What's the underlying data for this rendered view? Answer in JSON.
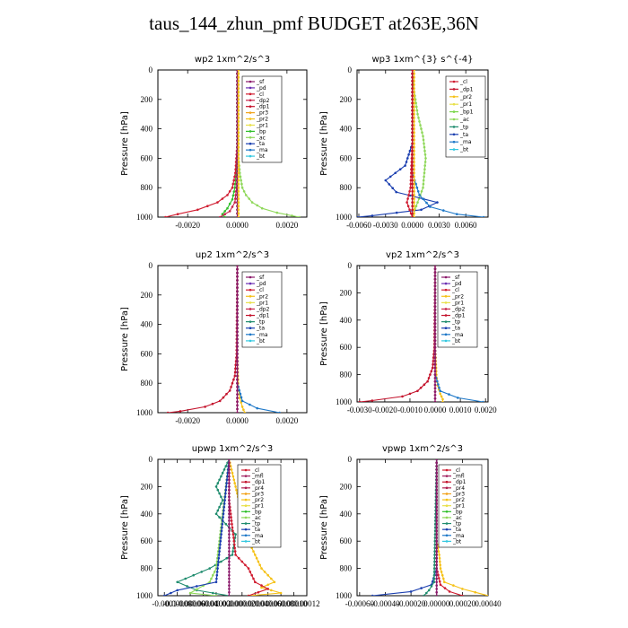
{
  "title": "taus_144_zhun_pmf  BUDGET at263E,36N",
  "colors": {
    "sf": "#8b1a6b",
    "pd": "#6b2fb3",
    "cl": "#d01c30",
    "dp2": "#c8244a",
    "dp1": "#c4132c",
    "pr3": "#f2a31c",
    "pr2": "#f5c116",
    "pr1": "#e8e04a",
    "bp": "#2fbf2a",
    "bp1": "#7ad64a",
    "ac": "#8fd85a",
    "tp": "#1f8c6e",
    "ta": "#1b3fb0",
    "ma": "#1e78c8",
    "bt": "#34c8e0",
    "mfl": "#a01f5f",
    "pr4": "#b02050",
    "dp1b": "#c93050"
  },
  "chart_data": [
    {
      "type": "line",
      "title": "wp2   1xm^2/s^3",
      "ylabel": "Pressure  [hPa]",
      "ylim": [
        1000,
        0
      ],
      "yticks": [
        0,
        200,
        400,
        600,
        800,
        1000
      ],
      "xlim": [
        -0.0032,
        0.0028
      ],
      "xticks": [
        -0.002,
        0.0,
        0.002
      ],
      "xtick_labels": [
        "-0.0020",
        "0.0000",
        "0.0020"
      ],
      "legend": [
        "_sf",
        "_pd",
        "_cl",
        "_dp2",
        "_dp1",
        "_pr3",
        "_pr2",
        "_pr1",
        "_bp",
        "_ac",
        "_ta",
        "_ma",
        "_bt"
      ],
      "series": [
        {
          "key": "ac",
          "p": [
            0,
            400,
            600,
            700,
            800,
            850,
            900,
            940,
            970,
            990,
            1000
          ],
          "v": [
            0,
            0,
            5e-05,
            0.0001,
            0.0002,
            0.00035,
            0.0006,
            0.001,
            0.0016,
            0.0022,
            0.0025
          ]
        },
        {
          "key": "bp",
          "p": [
            0,
            500,
            700,
            800,
            880,
            940,
            980,
            1000
          ],
          "v": [
            0,
            0,
            -5e-05,
            -0.0001,
            -0.0002,
            -0.0004,
            -0.0006,
            -0.0005
          ]
        },
        {
          "key": "cl",
          "p": [
            0,
            500,
            700,
            800,
            850,
            900,
            950,
            980,
            1000
          ],
          "v": [
            0,
            0,
            -8e-05,
            -0.0002,
            -0.0004,
            -0.0008,
            -0.0016,
            -0.0024,
            -0.0029
          ]
        },
        {
          "key": "dp2",
          "p": [
            0,
            600,
            800,
            900,
            960,
            1000
          ],
          "v": [
            0,
            0,
            -3e-05,
            -0.0001,
            -0.0003,
            -0.0007
          ]
        },
        {
          "key": "pd",
          "p": [
            0,
            1000
          ],
          "v": [
            0,
            0
          ]
        },
        {
          "key": "sf",
          "p": [
            0,
            1000
          ],
          "v": [
            0,
            0
          ]
        },
        {
          "key": "pr2",
          "p": [
            0,
            1000
          ],
          "v": [
            5e-05,
            5e-05
          ]
        }
      ]
    },
    {
      "type": "line",
      "title": "wp3   1xm^{3} s^{-4}",
      "ylabel": "Pressure  [hPa]",
      "ylim": [
        1000,
        0
      ],
      "yticks": [
        0,
        200,
        400,
        600,
        800,
        1000
      ],
      "xlim": [
        -0.0062,
        0.0085
      ],
      "xticks": [
        -0.006,
        -0.003,
        0.0,
        0.003,
        0.006
      ],
      "xtick_labels": [
        "-0.0060",
        "-0.0030",
        "0.0000",
        "0.0030",
        "0.0060"
      ],
      "legend": [
        "_cl",
        "_dp1",
        "_pr2",
        "_pr1",
        "_bp1",
        "_ac",
        "_tp",
        "_ta",
        "_ma",
        "_bt"
      ],
      "series": [
        {
          "key": "ac",
          "p": [
            0,
            100,
            300,
            450,
            600,
            800,
            900,
            1000
          ],
          "v": [
            0,
            0.0001,
            0.0006,
            0.0012,
            0.0015,
            0.0012,
            0.0006,
            0
          ]
        },
        {
          "key": "ta",
          "p": [
            0,
            500,
            650,
            750,
            830,
            900,
            950,
            990,
            1000
          ],
          "v": [
            0,
            0,
            -0.0008,
            -0.003,
            -0.0018,
            0.0028,
            0.001,
            -0.0045,
            -0.0062
          ]
        },
        {
          "key": "ma",
          "p": [
            0,
            700,
            850,
            930,
            980,
            1000
          ],
          "v": [
            0,
            0,
            0.0008,
            0.002,
            0.005,
            0.008
          ]
        },
        {
          "key": "cl",
          "p": [
            0,
            500,
            800,
            900,
            950,
            1000
          ],
          "v": [
            0,
            0,
            -0.0002,
            -0.0006,
            -0.0003,
            0
          ]
        },
        {
          "key": "pr2",
          "p": [
            0,
            1000
          ],
          "v": [
            0.0002,
            0.0002
          ]
        },
        {
          "key": "dp1",
          "p": [
            0,
            1000
          ],
          "v": [
            0,
            0
          ]
        }
      ]
    },
    {
      "type": "line",
      "title": "up2   1xm^2/s^3",
      "ylabel": "Pressure  [hPa]",
      "ylim": [
        1000,
        0
      ],
      "yticks": [
        0,
        200,
        400,
        600,
        800,
        1000
      ],
      "xlim": [
        -0.0032,
        0.0028
      ],
      "xticks": [
        -0.002,
        0.0,
        0.002
      ],
      "xtick_labels": [
        "-0.0020",
        "0.0000",
        "0.0020"
      ],
      "legend": [
        "_sf",
        "_pd",
        "_cl",
        "_pr2",
        "_pr1",
        "_dp2",
        "_dp1",
        "_tp",
        "_ta",
        "_ma",
        "_bt"
      ],
      "series": [
        {
          "key": "dp1",
          "p": [
            0,
            600,
            750,
            850,
            920,
            960,
            990,
            1000
          ],
          "v": [
            0,
            -3e-05,
            -0.0001,
            -0.0003,
            -0.0007,
            -0.0013,
            -0.0023,
            -0.0028
          ]
        },
        {
          "key": "pr2",
          "p": [
            0,
            600,
            800,
            900,
            960,
            1000
          ],
          "v": [
            0,
            0,
            3e-05,
            0.0001,
            0.0002,
            0.0003
          ]
        },
        {
          "key": "ma",
          "p": [
            0,
            800,
            920,
            970,
            1000
          ],
          "v": [
            0,
            0,
            0.0002,
            0.0008,
            0.0017
          ]
        },
        {
          "key": "cl",
          "p": [
            0,
            1000
          ],
          "v": [
            0,
            0
          ]
        },
        {
          "key": "sf",
          "p": [
            0,
            1000
          ],
          "v": [
            0,
            0
          ]
        }
      ]
    },
    {
      "type": "line",
      "title": "vp2   1xm^2/s^3",
      "ylabel": "Pressure  [hPa]",
      "ylim": [
        1000,
        0
      ],
      "yticks": [
        0,
        200,
        400,
        600,
        800,
        1000
      ],
      "xlim": [
        -0.0031,
        0.0021
      ],
      "xticks": [
        -0.003,
        -0.002,
        -0.001,
        0.0,
        0.001,
        0.002
      ],
      "xtick_labels": [
        "-0.0030",
        "-0.0020",
        "-0.0010",
        "0.0000",
        "0.0010",
        "0.0020"
      ],
      "legend": [
        "_sf",
        "_pd",
        "_cl",
        "_pr2",
        "_pr1",
        "_dp2",
        "_dp1",
        "_tp",
        "_ta",
        "_ma",
        "_bt"
      ],
      "series": [
        {
          "key": "dp1",
          "p": [
            0,
            600,
            750,
            850,
            920,
            960,
            990,
            1000
          ],
          "v": [
            0,
            -3e-05,
            -0.0001,
            -0.0003,
            -0.0007,
            -0.0013,
            -0.0025,
            -0.003
          ]
        },
        {
          "key": "pr2",
          "p": [
            0,
            600,
            800,
            880,
            940,
            980,
            1000
          ],
          "v": [
            0,
            0,
            5e-05,
            0.0001,
            0.0002,
            0.0003,
            0.0003
          ]
        },
        {
          "key": "ma",
          "p": [
            0,
            800,
            920,
            970,
            1000
          ],
          "v": [
            0,
            0,
            0.0002,
            0.0009,
            0.0019
          ]
        },
        {
          "key": "cl",
          "p": [
            0,
            1000
          ],
          "v": [
            0,
            0
          ]
        },
        {
          "key": "sf",
          "p": [
            0,
            1000
          ],
          "v": [
            0,
            0
          ]
        }
      ]
    },
    {
      "type": "line",
      "title": "upwp   1xm^2/s^3",
      "ylabel": "Pressure  [hPa]",
      "ylim": [
        1000,
        0
      ],
      "yticks": [
        0,
        200,
        400,
        600,
        800,
        1000
      ],
      "xlim": [
        -0.00011,
        0.00012
      ],
      "xticks": [
        -0.0001,
        -8e-05,
        -6e-05,
        -4e-05,
        -2e-05,
        0.0,
        2e-05,
        4e-05,
        6e-05,
        8e-05,
        0.0001,
        0.00012
      ],
      "xtick_labels": [
        "-0.0001",
        "-0.00008",
        "-0.00006",
        "-0.00004",
        "-0.00002",
        "0.00000",
        "0.00002",
        "0.00004",
        "0.00006",
        "0.00008",
        "0.00010",
        "0.00012"
      ],
      "legend": [
        "_cl",
        "_mfl",
        "_dp1",
        "_pr4",
        "_pr3",
        "_pr2",
        "_pr1",
        "_bp",
        "_ac",
        "_tp",
        "_ta",
        "_ma",
        "_bt"
      ],
      "series": [
        {
          "key": "tp",
          "p": [
            0,
            200,
            300,
            400,
            550,
            700,
            800,
            900,
            960,
            1000
          ],
          "v": [
            0,
            -2e-05,
            -1e-05,
            -2e-05,
            1e-05,
            5e-06,
            -3e-05,
            -8e-05,
            -5e-05,
            0
          ]
        },
        {
          "key": "pr2",
          "p": [
            0,
            200,
            400,
            600,
            700,
            800,
            900,
            940,
            980,
            1000
          ],
          "v": [
            0,
            1e-05,
            2e-05,
            3e-05,
            4e-05,
            5e-05,
            7e-05,
            5e-05,
            8e-05,
            3e-05
          ]
        },
        {
          "key": "cl",
          "p": [
            0,
            300,
            500,
            700,
            800,
            900,
            950,
            1000
          ],
          "v": [
            0,
            0,
            5e-06,
            1e-05,
            3e-05,
            4e-05,
            6e-05,
            3e-05
          ]
        },
        {
          "key": "ac",
          "p": [
            0,
            400,
            600,
            800,
            900,
            980,
            1000
          ],
          "v": [
            0,
            -1e-05,
            -1.5e-05,
            -2e-05,
            -3e-05,
            -6e-05,
            -2e-05
          ]
        },
        {
          "key": "ta",
          "p": [
            0,
            900,
            960,
            1000
          ],
          "v": [
            0,
            -2e-05,
            -8e-05,
            -0.0001
          ]
        },
        {
          "key": "sf",
          "p": [
            0,
            1000
          ],
          "v": [
            0,
            0
          ]
        }
      ]
    },
    {
      "type": "line",
      "title": "vpwp   1xm^2/s^3",
      "ylabel": "Pressure  [hPa]",
      "ylim": [
        1000,
        0
      ],
      "yticks": [
        0,
        200,
        400,
        600,
        800,
        1000
      ],
      "xlim": [
        -0.00062,
        0.0004
      ],
      "xticks": [
        -0.0006,
        -0.0004,
        -0.0002,
        0.0,
        0.0002,
        0.0004
      ],
      "xtick_labels": [
        "-0.00060",
        "-0.00040",
        "-0.00020",
        "0.00000",
        "0.00020",
        "0.00040"
      ],
      "legend": [
        "_cl",
        "_mfl",
        "_dp1",
        "_pr4",
        "_pr3",
        "_pr2",
        "_pr1",
        "_bp",
        "_ac",
        "_tp",
        "_ta",
        "_ma",
        "_bt"
      ],
      "series": [
        {
          "key": "pr2",
          "p": [
            0,
            600,
            700,
            800,
            900,
            950,
            1000
          ],
          "v": [
            0,
            0,
            2e-05,
            3e-05,
            6e-05,
            0.0002,
            0.0004
          ]
        },
        {
          "key": "ta",
          "p": [
            0,
            800,
            920,
            970,
            1000
          ],
          "v": [
            0,
            0,
            -4e-05,
            -0.0002,
            -0.0005
          ]
        },
        {
          "key": "cl",
          "p": [
            0,
            800,
            920,
            970,
            1000
          ],
          "v": [
            0,
            0,
            3e-05,
            0.0001,
            0.0002
          ]
        },
        {
          "key": "tp",
          "p": [
            0,
            900,
            960,
            1000
          ],
          "v": [
            0,
            -2e-05,
            -6e-05,
            -0.0001
          ]
        },
        {
          "key": "sf",
          "p": [
            0,
            1000
          ],
          "v": [
            0,
            0
          ]
        }
      ]
    }
  ]
}
